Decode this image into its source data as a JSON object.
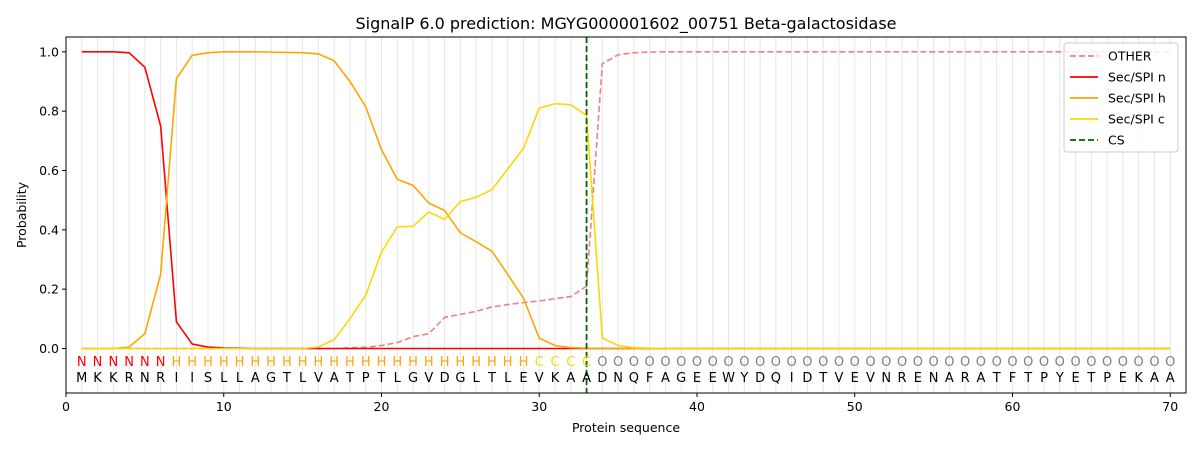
{
  "chart_data": {
    "type": "line",
    "title": "SignalP 6.0 prediction: MGYG000001602_00751 Beta-galactosidase",
    "xlabel": "Protein sequence",
    "ylabel": "Probability",
    "xlim": [
      0,
      71
    ],
    "ylim": [
      -0.15,
      1.05
    ],
    "xticks": [
      0,
      10,
      20,
      30,
      40,
      50,
      60,
      70
    ],
    "yticks": [
      0.0,
      0.2,
      0.4,
      0.6,
      0.8,
      1.0
    ],
    "xtick_labels": [
      "0",
      "10",
      "20",
      "30",
      "40",
      "50",
      "60",
      "70"
    ],
    "ytick_labels": [
      "0.0",
      "0.2",
      "0.4",
      "0.6",
      "0.8",
      "1.0"
    ],
    "grid": "vertical lines at each residue",
    "legend_position": "top-right",
    "sequence": [
      "M",
      "K",
      "K",
      "R",
      "N",
      "R",
      "I",
      "I",
      "S",
      "L",
      "L",
      "A",
      "G",
      "T",
      "L",
      "V",
      "A",
      "T",
      "P",
      "T",
      "L",
      "G",
      "V",
      "D",
      "G",
      "L",
      "T",
      "L",
      "E",
      "V",
      "K",
      "A",
      "A",
      "D",
      "N",
      "Q",
      "F",
      "A",
      "G",
      "E",
      "E",
      "W",
      "Y",
      "D",
      "Q",
      "I",
      "D",
      "T",
      "V",
      "E",
      "V",
      "N",
      "R",
      "E",
      "N",
      "A",
      "R",
      "A",
      "T",
      "F",
      "T",
      "P",
      "Y",
      "E",
      "T",
      "P",
      "E",
      "K",
      "A",
      "A"
    ],
    "labels": [
      "N",
      "N",
      "N",
      "N",
      "N",
      "N",
      "H",
      "H",
      "H",
      "H",
      "H",
      "H",
      "H",
      "H",
      "H",
      "H",
      "H",
      "H",
      "H",
      "H",
      "H",
      "H",
      "H",
      "H",
      "H",
      "H",
      "H",
      "H",
      "H",
      "C",
      "C",
      "C",
      "C",
      "O",
      "O",
      "O",
      "O",
      "O",
      "O",
      "O",
      "O",
      "O",
      "O",
      "O",
      "O",
      "O",
      "O",
      "O",
      "O",
      "O",
      "O",
      "O",
      "O",
      "O",
      "O",
      "O",
      "O",
      "O",
      "O",
      "O",
      "O",
      "O",
      "O",
      "O",
      "O",
      "O",
      "O",
      "O",
      "O",
      "O"
    ],
    "label_colors": {
      "N": "#ff0000",
      "H": "#ffa500",
      "C": "#ffd700",
      "O": "#808080"
    },
    "cleavage_site": 33,
    "series": [
      {
        "name": "OTHER",
        "color": "#f08080",
        "style": "dashed",
        "values": [
          0,
          0,
          0,
          0,
          0,
          0,
          0,
          0,
          0,
          0,
          0,
          0,
          0,
          0,
          0,
          0,
          0,
          0.002,
          0.004,
          0.01,
          0.02,
          0.04,
          0.05,
          0.105,
          0.115,
          0.125,
          0.14,
          0.148,
          0.155,
          0.16,
          0.168,
          0.175,
          0.21,
          0.96,
          0.99,
          0.997,
          0.999,
          1,
          1,
          1,
          1,
          1,
          1,
          1,
          1,
          1,
          1,
          1,
          1,
          1,
          1,
          1,
          1,
          1,
          1,
          1,
          1,
          1,
          1,
          1,
          1,
          1,
          1,
          1,
          1,
          1,
          1,
          1,
          1,
          1
        ]
      },
      {
        "name": "Sec/SPI n",
        "color": "#ff0000",
        "style": "solid",
        "values": [
          1.0,
          1.0,
          1.0,
          0.997,
          0.948,
          0.75,
          0.09,
          0.015,
          0.005,
          0.002,
          0.001,
          0,
          0,
          0,
          0,
          0,
          0,
          0,
          0,
          0,
          0,
          0,
          0,
          0,
          0,
          0,
          0,
          0,
          0,
          0,
          0,
          0,
          0,
          0,
          0,
          0,
          0,
          0,
          0,
          0,
          0,
          0,
          0,
          0,
          0,
          0,
          0,
          0,
          0,
          0,
          0,
          0,
          0,
          0,
          0,
          0,
          0,
          0,
          0,
          0,
          0,
          0,
          0,
          0,
          0,
          0,
          0,
          0,
          0,
          0
        ]
      },
      {
        "name": "Sec/SPI h",
        "color": "#ffa500",
        "style": "solid",
        "values": [
          0,
          0,
          0,
          0.005,
          0.05,
          0.25,
          0.91,
          0.988,
          0.997,
          1.0,
          1.0,
          1.0,
          0.999,
          0.998,
          0.997,
          0.993,
          0.97,
          0.9,
          0.815,
          0.67,
          0.57,
          0.55,
          0.49,
          0.465,
          0.39,
          0.36,
          0.328,
          0.25,
          0.17,
          0.035,
          0.01,
          0.003,
          0.001,
          0,
          0,
          0,
          0,
          0,
          0,
          0,
          0,
          0,
          0,
          0,
          0,
          0,
          0,
          0,
          0,
          0,
          0,
          0,
          0,
          0,
          0,
          0,
          0,
          0,
          0,
          0,
          0,
          0,
          0,
          0,
          0,
          0,
          0,
          0,
          0,
          0
        ]
      },
      {
        "name": "Sec/SPI c",
        "color": "#ffd700",
        "style": "solid",
        "values": [
          0,
          0,
          0,
          0,
          0,
          0,
          0,
          0,
          0,
          0,
          0,
          0,
          0,
          0,
          0,
          0.005,
          0.03,
          0.1,
          0.18,
          0.325,
          0.41,
          0.412,
          0.46,
          0.435,
          0.495,
          0.51,
          0.535,
          0.605,
          0.675,
          0.81,
          0.825,
          0.822,
          0.785,
          0.035,
          0.01,
          0.003,
          0.001,
          0,
          0,
          0,
          0,
          0,
          0,
          0,
          0,
          0,
          0,
          0,
          0,
          0,
          0,
          0,
          0,
          0,
          0,
          0,
          0,
          0,
          0,
          0,
          0,
          0,
          0,
          0,
          0,
          0,
          0,
          0,
          0,
          0
        ]
      },
      {
        "name": "CS",
        "color": "#006400",
        "style": "dashed",
        "vertical_at": 33
      }
    ]
  }
}
